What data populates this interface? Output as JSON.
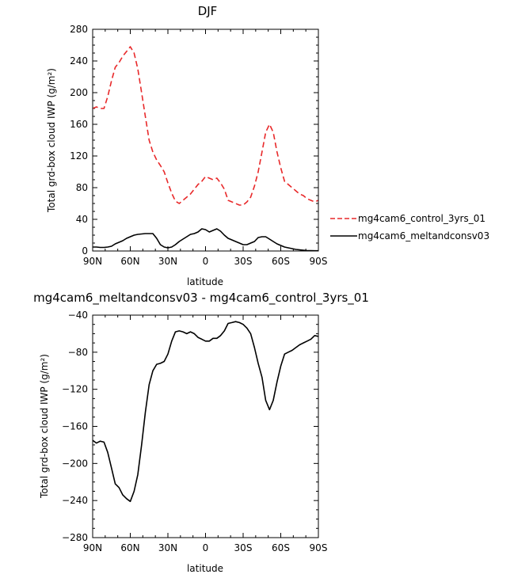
{
  "chart_data": [
    {
      "type": "line",
      "title": "DJF",
      "xlabel": "latitude",
      "ylabel": "Total grd-box cloud IWP (g/m²)",
      "xlim": [
        90,
        -90
      ],
      "ylim": [
        0,
        280
      ],
      "x_ticks": [
        90,
        60,
        30,
        0,
        -30,
        -60,
        -90
      ],
      "x_tick_labels": [
        "90N",
        "60N",
        "30N",
        "0",
        "30S",
        "60S",
        "90S"
      ],
      "y_ticks": [
        0,
        40,
        80,
        120,
        160,
        200,
        240,
        280
      ],
      "y_tick_labels": [
        "0",
        "40",
        "80",
        "120",
        "160",
        "200",
        "240",
        "280"
      ],
      "legend": "right",
      "series": [
        {
          "name": "mg4cam6_control_3yrs_01",
          "style": "dashed",
          "color": "#e8292a",
          "x": [
            90,
            87,
            84,
            81,
            78,
            75,
            72,
            69,
            66,
            63,
            60,
            57,
            54,
            51,
            48,
            45,
            42,
            39,
            36,
            33,
            30,
            27,
            24,
            21,
            18,
            15,
            12,
            9,
            6,
            3,
            0,
            -3,
            -6,
            -9,
            -12,
            -15,
            -18,
            -21,
            -24,
            -27,
            -30,
            -33,
            -36,
            -39,
            -42,
            -45,
            -48,
            -51,
            -54,
            -57,
            -60,
            -63,
            -66,
            -69,
            -72,
            -75,
            -78,
            -81,
            -84,
            -87,
            -90
          ],
          "values": [
            180,
            182,
            180,
            180,
            195,
            215,
            232,
            238,
            246,
            252,
            258,
            250,
            230,
            200,
            170,
            140,
            125,
            115,
            108,
            100,
            86,
            73,
            63,
            60,
            64,
            68,
            72,
            78,
            84,
            88,
            94,
            92,
            90,
            92,
            86,
            78,
            64,
            62,
            60,
            58,
            58,
            62,
            68,
            82,
            100,
            125,
            150,
            160,
            150,
            125,
            105,
            88,
            84,
            80,
            76,
            72,
            70,
            66,
            64,
            62,
            64
          ]
        },
        {
          "name": "mg4cam6_meltandconsv03",
          "style": "solid",
          "color": "#000000",
          "x": [
            90,
            87,
            84,
            81,
            78,
            75,
            72,
            69,
            66,
            63,
            60,
            57,
            54,
            51,
            48,
            45,
            42,
            39,
            36,
            33,
            30,
            27,
            24,
            21,
            18,
            15,
            12,
            9,
            6,
            3,
            0,
            -3,
            -6,
            -9,
            -12,
            -15,
            -18,
            -21,
            -24,
            -27,
            -30,
            -33,
            -36,
            -39,
            -42,
            -45,
            -48,
            -51,
            -54,
            -57,
            -60,
            -63,
            -66,
            -69,
            -72,
            -75,
            -78,
            -81,
            -84,
            -87,
            -90
          ],
          "values": [
            5,
            5,
            4.5,
            4.5,
            5,
            6,
            9,
            11,
            13,
            16,
            18,
            20,
            21,
            21.5,
            22,
            22,
            22,
            16,
            8,
            5,
            4,
            5,
            8,
            12,
            15,
            18,
            21,
            22,
            24,
            28,
            27,
            24,
            26,
            28,
            25,
            20,
            16,
            14,
            12,
            10,
            8,
            8,
            10,
            12,
            17,
            18,
            18,
            15,
            12,
            9,
            7,
            5,
            4,
            3,
            2,
            1.5,
            1,
            0.5,
            0.5,
            0.3,
            0.3
          ]
        }
      ]
    },
    {
      "type": "line",
      "title": "mg4cam6_meltandconsv03 - mg4cam6_control_3yrs_01",
      "xlabel": "latitude",
      "ylabel": "Total grd-box cloud IWP (g/m²)",
      "xlim": [
        90,
        -90
      ],
      "ylim": [
        -280,
        -40
      ],
      "x_ticks": [
        90,
        60,
        30,
        0,
        -30,
        -60,
        -90
      ],
      "x_tick_labels": [
        "90N",
        "60N",
        "30N",
        "0",
        "30S",
        "60S",
        "90S"
      ],
      "y_ticks": [
        -280,
        -240,
        -200,
        -160,
        -120,
        -80,
        -40
      ],
      "y_tick_labels": [
        "−280",
        "−240",
        "−200",
        "−160",
        "−120",
        "−80",
        "−40"
      ],
      "series": [
        {
          "style": "solid",
          "color": "#000000",
          "x": [
            90,
            87,
            84,
            81,
            78,
            75,
            72,
            69,
            66,
            63,
            60,
            57,
            54,
            51,
            48,
            45,
            42,
            39,
            36,
            33,
            30,
            27,
            24,
            21,
            18,
            15,
            12,
            9,
            6,
            3,
            0,
            -3,
            -6,
            -9,
            -12,
            -15,
            -18,
            -21,
            -24,
            -27,
            -30,
            -33,
            -36,
            -39,
            -42,
            -45,
            -48,
            -51,
            -54,
            -57,
            -60,
            -63,
            -66,
            -69,
            -72,
            -75,
            -78,
            -81,
            -84,
            -87,
            -90
          ],
          "values": [
            -175,
            -178,
            -176,
            -177,
            -188,
            -205,
            -222,
            -226,
            -234,
            -238,
            -241,
            -230,
            -212,
            -180,
            -145,
            -115,
            -100,
            -93,
            -92,
            -90,
            -82,
            -68,
            -58,
            -57,
            -58,
            -60,
            -58,
            -60,
            -64,
            -66,
            -68,
            -68,
            -65,
            -65,
            -62,
            -57,
            -49,
            -48,
            -47,
            -48,
            -50,
            -54,
            -60,
            -75,
            -92,
            -107,
            -132,
            -142,
            -132,
            -112,
            -95,
            -82,
            -80,
            -78,
            -75,
            -72,
            -70,
            -68,
            -66,
            -62,
            -63
          ]
        }
      ]
    }
  ]
}
